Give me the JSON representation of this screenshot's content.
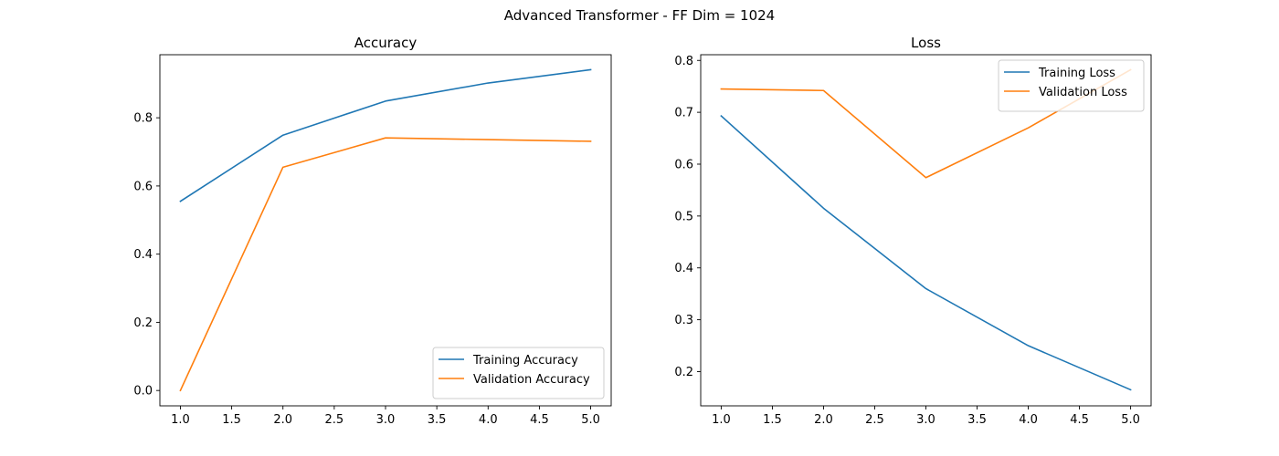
{
  "figure": {
    "suptitle": "Advanced Transformer - FF Dim = 1024"
  },
  "chart_data": [
    {
      "type": "line",
      "title": "Accuracy",
      "xlabel": "",
      "ylabel": "",
      "x": [
        1,
        2,
        3,
        4,
        5
      ],
      "xlim": [
        0.8,
        5.2
      ],
      "ylim": [
        -0.045,
        0.985
      ],
      "xticks": [
        1.0,
        1.5,
        2.0,
        2.5,
        3.0,
        3.5,
        4.0,
        4.5,
        5.0
      ],
      "xtick_labels": [
        "1.0",
        "1.5",
        "2.0",
        "2.5",
        "3.0",
        "3.5",
        "4.0",
        "4.5",
        "5.0"
      ],
      "yticks": [
        0.0,
        0.2,
        0.4,
        0.6,
        0.8
      ],
      "ytick_labels": [
        "0.0",
        "0.2",
        "0.4",
        "0.6",
        "0.8"
      ],
      "grid": false,
      "legend": "lower-right",
      "series": [
        {
          "name": "Training Accuracy",
          "color": "#1f77b4",
          "values": [
            0.555,
            0.749,
            0.849,
            0.902,
            0.941
          ]
        },
        {
          "name": "Validation Accuracy",
          "color": "#ff7f0e",
          "values": [
            0.0,
            0.655,
            0.741,
            0.736,
            0.731
          ]
        }
      ]
    },
    {
      "type": "line",
      "title": "Loss",
      "xlabel": "",
      "ylabel": "",
      "x": [
        1,
        2,
        3,
        4,
        5
      ],
      "xlim": [
        0.8,
        5.2
      ],
      "ylim": [
        0.134,
        0.811
      ],
      "xticks": [
        1.0,
        1.5,
        2.0,
        2.5,
        3.0,
        3.5,
        4.0,
        4.5,
        5.0
      ],
      "xtick_labels": [
        "1.0",
        "1.5",
        "2.0",
        "2.5",
        "3.0",
        "3.5",
        "4.0",
        "4.5",
        "5.0"
      ],
      "yticks": [
        0.2,
        0.3,
        0.4,
        0.5,
        0.6,
        0.7,
        0.8
      ],
      "ytick_labels": [
        "0.2",
        "0.3",
        "0.4",
        "0.5",
        "0.6",
        "0.7",
        "0.8"
      ],
      "grid": false,
      "legend": "upper-right",
      "series": [
        {
          "name": "Training Loss",
          "color": "#1f77b4",
          "values": [
            0.693,
            0.515,
            0.36,
            0.25,
            0.165
          ]
        },
        {
          "name": "Validation Loss",
          "color": "#ff7f0e",
          "values": [
            0.745,
            0.742,
            0.574,
            0.67,
            0.782
          ]
        }
      ]
    }
  ]
}
